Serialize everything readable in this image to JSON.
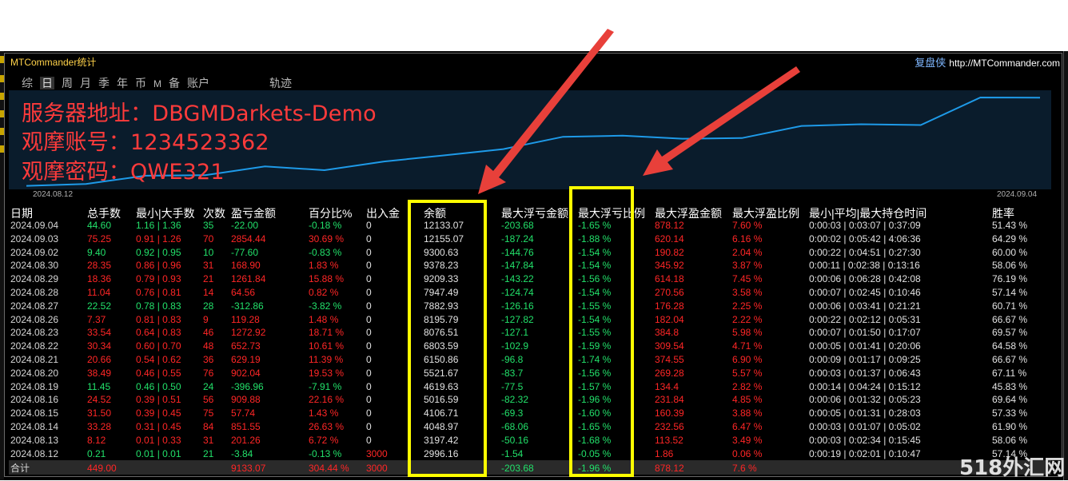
{
  "window": {
    "title": "MTCommander统计",
    "brand_cn": "复盘侠",
    "brand_url": "http://MTCommander.com"
  },
  "tabs": [
    "综",
    "日",
    "周",
    "月",
    "季",
    "年",
    "币",
    "M",
    "备",
    "账户",
    "轨迹"
  ],
  "active_tab": "日",
  "overlay": {
    "server": "服务器地址：DBGMDarkets-Demo",
    "account": "观摩账号：1234523362",
    "password": "观摩密码：QWE321"
  },
  "chart_data": {
    "type": "line",
    "x_start_label": "2024.08.12",
    "x_end_label": "2024.09.04",
    "x": [
      "2024.08.12",
      "2024.08.13",
      "2024.08.14",
      "2024.08.15",
      "2024.08.16",
      "2024.08.19",
      "2024.08.20",
      "2024.08.21",
      "2024.08.22",
      "2024.08.23",
      "2024.08.26",
      "2024.08.27",
      "2024.08.28",
      "2024.08.29",
      "2024.08.30",
      "2024.09.02",
      "2024.09.03",
      "2024.09.04"
    ],
    "series": [
      {
        "values": [
          2996.16,
          3197.42,
          4048.97,
          4106.71,
          5016.59,
          4619.63,
          5521.67,
          6150.86,
          6803.59,
          8076.51,
          8195.79,
          7882.93,
          7947.49,
          9209.33,
          9378.23,
          9300.63,
          12155.07,
          12133.07
        ]
      }
    ],
    "line_color": "#1e9ae8"
  },
  "table": {
    "headers": [
      "日期",
      "总手数",
      "最小|大手数",
      "次数",
      "盈亏金额",
      "百分比%",
      "出入金",
      "余额",
      "最大浮亏金额",
      "最大浮亏比例",
      "最大浮盈金额",
      "最大浮盈比例",
      "最小|平均|最大持仓时间",
      "胜率"
    ],
    "rows": [
      [
        "2024.09.04",
        "44.60",
        "1.16 | 1.36",
        "35",
        "-22.00",
        "-0.18 %",
        "0",
        "12133.07",
        "-203.68",
        "-1.65 %",
        "878.12",
        "7.60 %",
        "0:00:03 | 0:03:07 | 0:37:09",
        "51.43 %"
      ],
      [
        "2024.09.03",
        "75.25",
        "0.91 | 1.26",
        "70",
        "2854.44",
        "30.69 %",
        "0",
        "12155.07",
        "-187.24",
        "-1.88 %",
        "620.14",
        "6.16 %",
        "0:00:02 | 0:05:42 | 4:06:36",
        "64.29 %"
      ],
      [
        "2024.09.02",
        "9.40",
        "0.92 | 0.95",
        "10",
        "-77.60",
        "-0.83 %",
        "0",
        "9300.63",
        "-144.76",
        "-1.54 %",
        "190.82",
        "2.04 %",
        "0:00:22 | 0:04:51 | 0:27:30",
        "60.00 %"
      ],
      [
        "2024.08.30",
        "28.35",
        "0.86 | 0.96",
        "31",
        "168.90",
        "1.83 %",
        "0",
        "9378.23",
        "-147.84",
        "-1.54 %",
        "345.92",
        "3.87 %",
        "0:00:11 | 0:02:38 | 0:13:16",
        "58.06 %"
      ],
      [
        "2024.08.29",
        "18.36",
        "0.79 | 0.93",
        "21",
        "1261.84",
        "15.88 %",
        "0",
        "9209.33",
        "-143.22",
        "-1.56 %",
        "614.18",
        "7.45 %",
        "0:00:06 | 0:06:28 | 0:42:08",
        "76.19 %"
      ],
      [
        "2024.08.28",
        "11.04",
        "0.76 | 0.81",
        "14",
        "64.56",
        "0.82 %",
        "0",
        "7947.49",
        "-124.74",
        "-1.54 %",
        "270.56",
        "3.58 %",
        "0:00:07 | 0:02:45 | 0:10:46",
        "57.14 %"
      ],
      [
        "2024.08.27",
        "22.52",
        "0.78 | 0.83",
        "28",
        "-312.86",
        "-3.82 %",
        "0",
        "7882.93",
        "-126.16",
        "-1.55 %",
        "176.28",
        "2.25 %",
        "0:00:06 | 0:03:41 | 0:21:21",
        "60.71 %"
      ],
      [
        "2024.08.26",
        "7.37",
        "0.81 | 0.83",
        "9",
        "119.28",
        "1.48 %",
        "0",
        "8195.79",
        "-127.82",
        "-1.54 %",
        "182.04",
        "2.22 %",
        "0:00:22 | 0:02:12 | 0:05:31",
        "66.67 %"
      ],
      [
        "2024.08.23",
        "33.54",
        "0.64 | 0.83",
        "46",
        "1272.92",
        "18.71 %",
        "0",
        "8076.51",
        "-127.1",
        "-1.55 %",
        "384.8",
        "5.98 %",
        "0:00:07 | 0:01:50 | 0:17:07",
        "69.57 %"
      ],
      [
        "2024.08.22",
        "30.34",
        "0.60 | 0.70",
        "48",
        "652.73",
        "10.61 %",
        "0",
        "6803.59",
        "-102.9",
        "-1.59 %",
        "309.54",
        "4.71 %",
        "0:00:05 | 0:01:41 | 0:20:06",
        "64.58 %"
      ],
      [
        "2024.08.21",
        "20.66",
        "0.54 | 0.62",
        "36",
        "629.19",
        "11.39 %",
        "0",
        "6150.86",
        "-96.8",
        "-1.74 %",
        "374.55",
        "6.90 %",
        "0:00:09 | 0:01:17 | 0:09:25",
        "66.67 %"
      ],
      [
        "2024.08.20",
        "38.49",
        "0.46 | 0.55",
        "76",
        "902.04",
        "19.53 %",
        "0",
        "5521.67",
        "-83.7",
        "-1.56 %",
        "269.28",
        "5.57 %",
        "0:00:03 | 0:01:37 | 0:06:43",
        "67.11 %"
      ],
      [
        "2024.08.19",
        "11.45",
        "0.46 | 0.50",
        "24",
        "-396.96",
        "-7.91 %",
        "0",
        "4619.63",
        "-77.5",
        "-1.57 %",
        "134.4",
        "2.82 %",
        "0:00:14 | 0:04:24 | 0:15:12",
        "45.83 %"
      ],
      [
        "2024.08.16",
        "24.52",
        "0.39 | 0.51",
        "56",
        "909.88",
        "22.16 %",
        "0",
        "5016.59",
        "-82.32",
        "-1.96 %",
        "231.84",
        "4.85 %",
        "0:00:06 | 0:01:32 | 0:05:23",
        "69.64 %"
      ],
      [
        "2024.08.15",
        "31.50",
        "0.39 | 0.45",
        "75",
        "57.74",
        "1.43 %",
        "0",
        "4106.71",
        "-69.3",
        "-1.60 %",
        "160.39",
        "3.88 %",
        "0:00:05 | 0:01:31 | 0:28:03",
        "57.33 %"
      ],
      [
        "2024.08.14",
        "33.28",
        "0.31 | 0.45",
        "84",
        "851.55",
        "26.63 %",
        "0",
        "4048.97",
        "-68.06",
        "-1.65 %",
        "232.56",
        "6.47 %",
        "0:00:03 | 0:01:07 | 0:05:02",
        "61.90 %"
      ],
      [
        "2024.08.13",
        "8.12",
        "0.01 | 0.33",
        "31",
        "201.26",
        "6.72 %",
        "0",
        "3197.42",
        "-50.16",
        "-1.68 %",
        "113.52",
        "3.49 %",
        "0:00:03 | 0:02:34 | 0:15:45",
        "58.06 %"
      ],
      [
        "2024.08.12",
        "0.21",
        "0.01 | 0.01",
        "21",
        "-3.84",
        "-0.13 %",
        "3000",
        "2996.16",
        "-1.54",
        "-0.05 %",
        "1.86",
        "0.06 %",
        "0:00:19 | 0:02:01 | 0:10:47",
        "57.14 %"
      ]
    ],
    "total": [
      "合计",
      "449.00",
      "",
      "",
      "9133.07",
      "304.44 %",
      "3000",
      "",
      "-203.68",
      "-1.96 %",
      "878.12",
      "7.6 %",
      "",
      ""
    ]
  },
  "colors": {
    "profit": "#ff2626",
    "loss": "#22e06a",
    "highlight": "#ffff00",
    "arrow": "#e8403a"
  },
  "watermark": "518外汇网"
}
